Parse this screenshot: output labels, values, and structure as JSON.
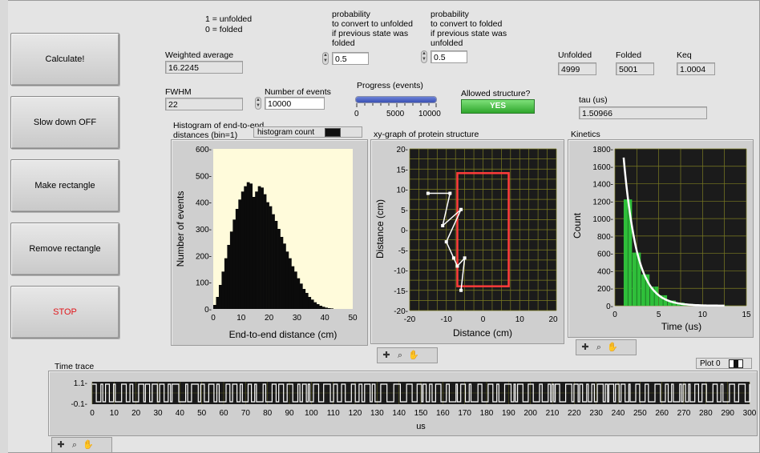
{
  "buttons": {
    "calculate": "Calculate!",
    "slow_down": "Slow down OFF",
    "make_rect": "Make rectangle",
    "remove_rect": "Remove  rectangle",
    "stop": "STOP"
  },
  "legend_states": {
    "line1": "1 = unfolded",
    "line2": "0 = folded"
  },
  "prob_unfold": {
    "label_lines": [
      "probability",
      "to convert to unfolded",
      "if previous state was",
      "folded"
    ],
    "value": "0.5"
  },
  "prob_fold": {
    "label_lines": [
      "probability",
      "to convert to folded",
      "if previous state was",
      "unfolded"
    ],
    "value": "0.5"
  },
  "weighted_average": {
    "label": "Weighted average",
    "value": "16.2245"
  },
  "fwhm": {
    "label": "FWHM",
    "value": "22"
  },
  "num_events": {
    "label": "Number of events",
    "value": "10000"
  },
  "progress": {
    "label": "Progress (events)",
    "fraction": 1.0,
    "ticks": [
      "0",
      "5000",
      "10000"
    ]
  },
  "allowed": {
    "label": "Allowed structure?",
    "value": "YES",
    "color": "#3cb83a"
  },
  "counts": {
    "unfolded_label": "Unfolded",
    "unfolded_value": "4999",
    "folded_label": "Folded",
    "folded_value": "5001",
    "keq_label": "Keq",
    "keq_value": "1.0004"
  },
  "tau": {
    "label": "tau (us)",
    "value": "1.50966"
  },
  "histogram": {
    "title_line1": "Histogram of end-to-end",
    "title_line2": "distances (bin=1)",
    "legend": "histogram count",
    "xlabel": "End-to-end distance (cm)",
    "ylabel": "Number of events",
    "xticks": [
      "0",
      "10",
      "20",
      "30",
      "40",
      "50"
    ],
    "yticks": [
      "0-",
      "100-",
      "200-",
      "300-",
      "400-",
      "500-",
      "600-"
    ]
  },
  "xy": {
    "title": "xy-graph of protein structure",
    "xlabel": "Distance (cm)",
    "ylabel": "Distance (cm)",
    "xticks": [
      "-20",
      "-10",
      "0",
      "10",
      "20"
    ],
    "yticks": [
      "20-",
      "15-",
      "10-",
      "5-",
      "0-",
      "-5-",
      "-10-",
      "-15-",
      "-20-"
    ]
  },
  "kinetics": {
    "title": "Kinetics",
    "xlabel": "Time (us)",
    "ylabel": "Count",
    "xticks": [
      "0",
      "5",
      "10",
      "15"
    ],
    "yticks": [
      "1800-",
      "1600-",
      "1400-",
      "1200-",
      "1000-",
      "800-",
      "600-",
      "400-",
      "200-",
      "0-"
    ]
  },
  "time_trace": {
    "title": "Time trace",
    "xlabel": "us",
    "plot_legend": "Plot 0",
    "ytick_top": "1.1-",
    "ytick_bottom": "-0.1-",
    "xticks": [
      "0",
      "10",
      "20",
      "30",
      "40",
      "50",
      "60",
      "70",
      "80",
      "90",
      "100",
      "110",
      "120",
      "130",
      "140",
      "150",
      "160",
      "170",
      "180",
      "190",
      "200",
      "210",
      "220",
      "230",
      "240",
      "250",
      "260",
      "270",
      "280",
      "290",
      "300"
    ]
  },
  "icons": [
    "crosshair-icon",
    "zoom-icon",
    "hand-icon"
  ],
  "colors": {
    "histogram_bg": "#fffbdb",
    "graph_bg": "#1b1b1b",
    "grid": "#8a8a2a",
    "rectangle": "#ff3b3b",
    "kinetics_fill": "#2fbf3a",
    "stop_text": "#e0161b",
    "progress": "#4a62c8"
  },
  "chart_data": [
    {
      "type": "bar",
      "title": "Histogram of end-to-end distances (bin=1)",
      "xlabel": "End-to-end distance (cm)",
      "ylabel": "Number of events",
      "xlim": [
        0,
        50
      ],
      "ylim": [
        0,
        600
      ],
      "x": [
        1,
        2,
        3,
        4,
        5,
        6,
        7,
        8,
        9,
        10,
        11,
        12,
        13,
        14,
        15,
        16,
        17,
        18,
        19,
        20,
        21,
        22,
        23,
        24,
        25,
        26,
        27,
        28,
        29,
        30,
        31,
        32,
        33,
        34,
        35,
        36,
        37,
        38,
        39,
        40,
        41,
        42,
        43
      ],
      "values": [
        15,
        45,
        90,
        140,
        190,
        240,
        290,
        335,
        375,
        410,
        440,
        460,
        475,
        470,
        420,
        440,
        460,
        455,
        430,
        400,
        385,
        355,
        330,
        300,
        270,
        245,
        215,
        190,
        160,
        140,
        115,
        95,
        75,
        60,
        45,
        35,
        25,
        18,
        12,
        8,
        5,
        3,
        2
      ]
    },
    {
      "type": "scatter",
      "title": "xy-graph of protein structure",
      "xlabel": "Distance (cm)",
      "ylabel": "Distance (cm)",
      "xlim": [
        -20,
        20
      ],
      "ylim": [
        -20,
        20
      ],
      "x": [
        -15,
        -9,
        -11,
        -6,
        -10,
        -8,
        -7,
        -5,
        -6
      ],
      "y": [
        9,
        9,
        1,
        5,
        -3,
        -7,
        -9,
        -7,
        -15
      ],
      "rectangle": {
        "x0": -7,
        "y0": -14,
        "x1": 7,
        "y1": 14
      }
    },
    {
      "type": "bar",
      "title": "Kinetics",
      "xlabel": "Time (us)",
      "ylabel": "Count",
      "xlim": [
        0,
        15
      ],
      "ylim": [
        0,
        1800
      ],
      "x": [
        1,
        2,
        3,
        4,
        5,
        6,
        7,
        8,
        9,
        10,
        11,
        12
      ],
      "values": [
        1220,
        610,
        360,
        220,
        120,
        60,
        35,
        20,
        10,
        5,
        3,
        2
      ],
      "fit_tau": 1.50966,
      "fit_amplitude": 1700
    },
    {
      "type": "line",
      "title": "Time trace",
      "xlabel": "us",
      "xlim": [
        0,
        300
      ],
      "ylim": [
        -0.1,
        1.1
      ],
      "seed": 7
    }
  ]
}
